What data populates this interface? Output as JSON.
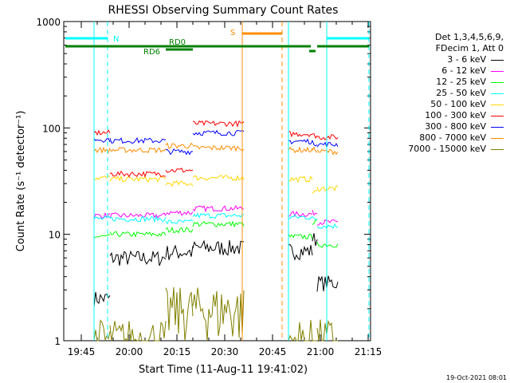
{
  "chart_data": {
    "type": "line",
    "title": "RHESSI Observing Summary Count Rates",
    "xlabel": "Start Time (11-Aug-11 19:41:02)",
    "ylabel": "Count Rate (s⁻¹ detector⁻¹)",
    "yscale": "log",
    "ylim": [
      1,
      1000
    ],
    "xlim_minutes": [
      19.7,
      21.3
    ],
    "x_ticks": [
      "19:45",
      "20:00",
      "20:15",
      "20:30",
      "20:45",
      "21:00",
      "21:15"
    ],
    "y_ticks": [
      "1",
      "10",
      "100",
      "1000"
    ],
    "timestamp": "19-Oct-2021 08:01",
    "legend_header": [
      "Det 1,3,4,5,6,9,",
      "FDecim 1, Att 0"
    ],
    "flags": [
      {
        "label": "N",
        "color": "#00ffff"
      },
      {
        "label": "S",
        "color": "#ff8c00"
      },
      {
        "label": "RD0",
        "color": "#008000"
      },
      {
        "label": "RD6",
        "color": "#008000"
      }
    ],
    "series": [
      {
        "name": "3 - 6 keV",
        "color": "#000000",
        "levels": [
          2.5,
          6,
          6.8,
          7.5,
          7,
          9,
          3.5
        ]
      },
      {
        "name": "6 - 12 keV",
        "color": "#ff00ff",
        "levels": [
          15,
          15,
          16,
          17.5,
          15.5,
          16,
          13
        ]
      },
      {
        "name": "12 - 25 keV",
        "color": "#00ff00",
        "levels": [
          9.5,
          10,
          11,
          12.5,
          9.5,
          13,
          8
        ]
      },
      {
        "name": "25 - 50 keV",
        "color": "#00ffff",
        "levels": [
          14,
          14,
          13,
          15,
          14.5,
          14,
          12
        ]
      },
      {
        "name": "50 - 100 keV",
        "color": "#ffd700",
        "levels": [
          34,
          33,
          30,
          34,
          33,
          25,
          27
        ]
      },
      {
        "name": "100 - 300 keV",
        "color": "#ff0000",
        "levels": [
          90,
          37,
          40,
          110,
          88,
          85,
          82
        ]
      },
      {
        "name": "300 - 800 keV",
        "color": "#0000ff",
        "levels": [
          78,
          76,
          60,
          90,
          75,
          72,
          70
        ]
      },
      {
        "name": "800 - 7000 keV",
        "color": "#ff8c00",
        "levels": [
          62,
          62,
          68,
          65,
          62,
          62,
          60
        ]
      },
      {
        "name": "7000 - 15000 keV",
        "color": "#808000",
        "levels": [
          1,
          1,
          2,
          2,
          1,
          1,
          1
        ]
      }
    ]
  }
}
